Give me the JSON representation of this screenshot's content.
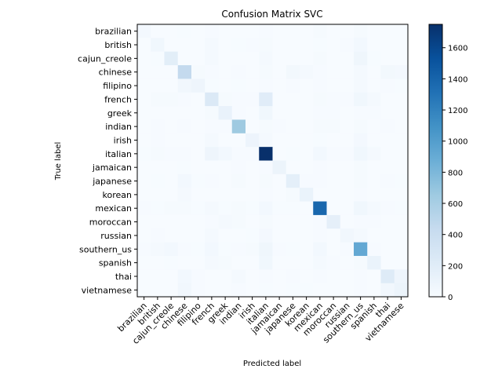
{
  "chart_data": {
    "type": "heatmap",
    "title": "Confusion Matrix SVC",
    "xlabel": "Predicted label",
    "ylabel": "True label",
    "labels": [
      "brazilian",
      "british",
      "cajun_creole",
      "chinese",
      "filipino",
      "french",
      "greek",
      "indian",
      "irish",
      "italian",
      "jamaican",
      "japanese",
      "korean",
      "mexican",
      "moroccan",
      "russian",
      "southern_us",
      "spanish",
      "thai",
      "vietnamese"
    ],
    "colorbar": {
      "min": 0,
      "max": 1750,
      "ticks": [
        0,
        200,
        400,
        600,
        800,
        1000,
        1200,
        1400,
        1600
      ]
    },
    "colormap": [
      "#f7fbff",
      "#deebf7",
      "#c6dbef",
      "#9ecae1",
      "#6baed6",
      "#4292c6",
      "#2171b5",
      "#08519c",
      "#08306b"
    ],
    "matrix": [
      [
        35,
        2,
        3,
        5,
        2,
        8,
        1,
        3,
        1,
        12,
        1,
        1,
        1,
        15,
        1,
        1,
        18,
        2,
        2,
        1
      ],
      [
        2,
        60,
        4,
        3,
        1,
        25,
        2,
        6,
        10,
        20,
        1,
        2,
        1,
        6,
        1,
        8,
        40,
        3,
        1,
        1
      ],
      [
        2,
        5,
        180,
        3,
        1,
        25,
        2,
        4,
        3,
        30,
        2,
        1,
        1,
        15,
        1,
        2,
        70,
        6,
        1,
        1
      ],
      [
        2,
        2,
        3,
        450,
        20,
        8,
        1,
        8,
        2,
        15,
        3,
        45,
        30,
        10,
        1,
        2,
        25,
        2,
        45,
        35
      ],
      [
        2,
        1,
        2,
        50,
        80,
        6,
        1,
        6,
        1,
        10,
        3,
        8,
        4,
        12,
        1,
        1,
        22,
        4,
        8,
        6
      ],
      [
        4,
        15,
        20,
        10,
        2,
        250,
        15,
        8,
        12,
        200,
        2,
        3,
        2,
        15,
        10,
        10,
        60,
        25,
        2,
        2
      ],
      [
        2,
        4,
        3,
        2,
        1,
        20,
        120,
        10,
        2,
        60,
        1,
        1,
        1,
        10,
        10,
        2,
        12,
        8,
        1,
        1
      ],
      [
        4,
        8,
        4,
        10,
        3,
        8,
        8,
        650,
        4,
        15,
        12,
        4,
        2,
        20,
        15,
        3,
        20,
        2,
        8,
        3
      ],
      [
        2,
        10,
        3,
        2,
        1,
        25,
        2,
        4,
        90,
        30,
        1,
        1,
        1,
        6,
        2,
        4,
        35,
        3,
        1,
        1
      ],
      [
        6,
        15,
        10,
        10,
        4,
        80,
        40,
        12,
        10,
        1750,
        3,
        6,
        2,
        40,
        12,
        10,
        60,
        25,
        4,
        4
      ],
      [
        2,
        2,
        3,
        5,
        2,
        4,
        1,
        10,
        2,
        10,
        100,
        2,
        1,
        10,
        1,
        1,
        18,
        2,
        2,
        1
      ],
      [
        2,
        6,
        3,
        40,
        5,
        8,
        2,
        20,
        2,
        20,
        1,
        170,
        12,
        8,
        1,
        2,
        18,
        2,
        10,
        5
      ],
      [
        1,
        1,
        2,
        30,
        2,
        3,
        1,
        4,
        1,
        10,
        1,
        20,
        110,
        4,
        1,
        2,
        10,
        1,
        3,
        2
      ],
      [
        8,
        6,
        15,
        20,
        5,
        25,
        6,
        20,
        6,
        40,
        5,
        6,
        2,
        1380,
        4,
        3,
        60,
        25,
        8,
        5
      ],
      [
        2,
        2,
        2,
        3,
        1,
        10,
        25,
        20,
        2,
        20,
        1,
        2,
        1,
        10,
        160,
        2,
        10,
        8,
        1,
        1
      ],
      [
        2,
        8,
        2,
        4,
        1,
        25,
        3,
        4,
        6,
        35,
        1,
        2,
        1,
        8,
        2,
        50,
        30,
        2,
        1,
        1
      ],
      [
        8,
        25,
        40,
        10,
        6,
        40,
        6,
        12,
        15,
        70,
        10,
        6,
        4,
        40,
        4,
        12,
        920,
        10,
        4,
        2
      ],
      [
        2,
        4,
        6,
        3,
        2,
        30,
        15,
        3,
        2,
        60,
        1,
        2,
        1,
        30,
        10,
        4,
        20,
        110,
        2,
        1
      ],
      [
        2,
        2,
        2,
        40,
        8,
        4,
        2,
        25,
        1,
        8,
        2,
        10,
        4,
        12,
        2,
        1,
        12,
        1,
        220,
        80
      ],
      [
        1,
        1,
        1,
        50,
        8,
        3,
        1,
        8,
        1,
        6,
        1,
        6,
        6,
        4,
        1,
        1,
        10,
        1,
        50,
        100
      ]
    ]
  }
}
